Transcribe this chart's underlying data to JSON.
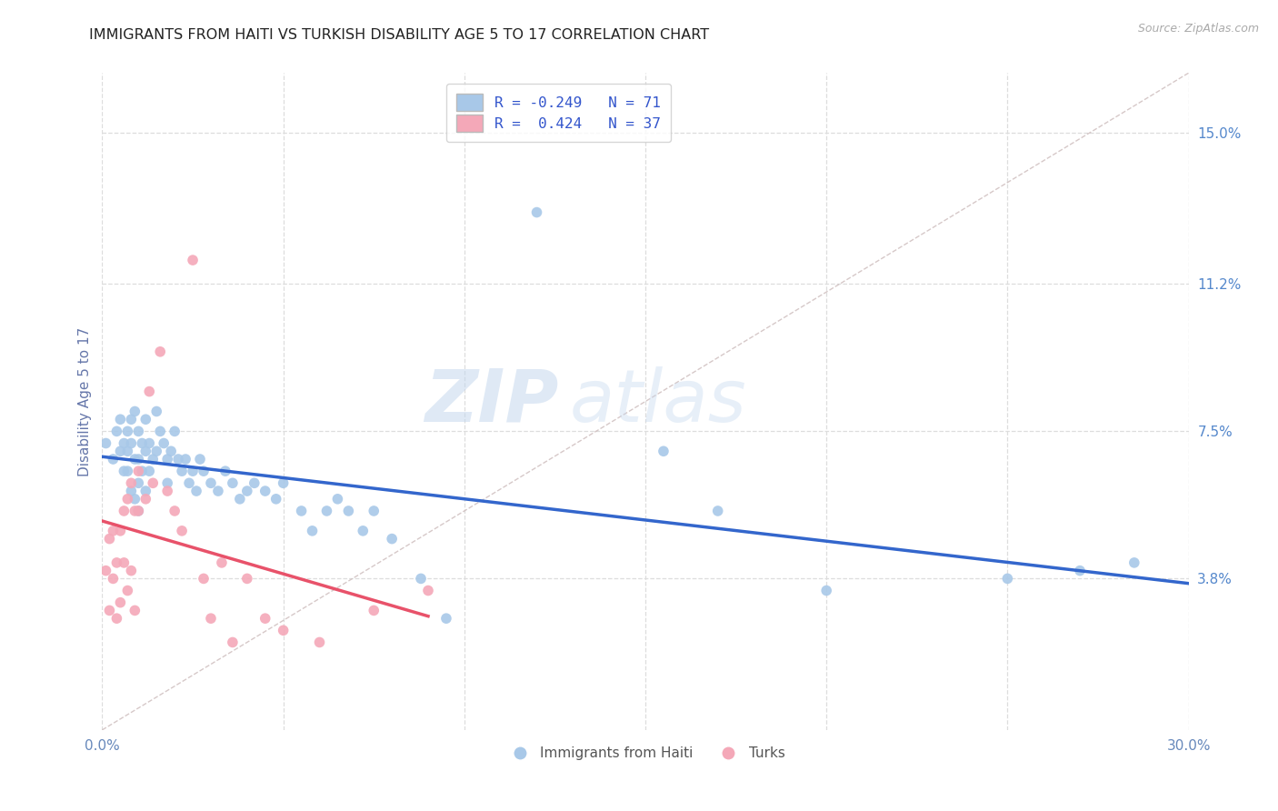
{
  "title": "IMMIGRANTS FROM HAITI VS TURKISH DISABILITY AGE 5 TO 17 CORRELATION CHART",
  "source": "Source: ZipAtlas.com",
  "ylabel": "Disability Age 5 to 17",
  "xlim": [
    0.0,
    0.3
  ],
  "ylim": [
    0.0,
    0.165
  ],
  "xticks": [
    0.0,
    0.05,
    0.1,
    0.15,
    0.2,
    0.25,
    0.3
  ],
  "xticklabels": [
    "0.0%",
    "",
    "",
    "",
    "",
    "",
    "30.0%"
  ],
  "ytick_positions": [
    0.038,
    0.075,
    0.112,
    0.15
  ],
  "ytick_labels": [
    "3.8%",
    "7.5%",
    "11.2%",
    "15.0%"
  ],
  "legend_blue_r": "-0.249",
  "legend_blue_n": "71",
  "legend_pink_r": "0.424",
  "legend_pink_n": "37",
  "legend_label_blue": "Immigrants from Haiti",
  "legend_label_pink": "Turks",
  "color_blue": "#a8c8e8",
  "color_pink": "#f4a8b8",
  "color_line_blue": "#3366cc",
  "color_line_pink": "#e8526a",
  "color_diag": "#ccbbbb",
  "background": "#ffffff",
  "grid_color": "#dddddd",
  "title_color": "#222222",
  "watermark_zip": "ZIP",
  "watermark_atlas": "atlas",
  "blue_x": [
    0.001,
    0.003,
    0.004,
    0.005,
    0.005,
    0.006,
    0.006,
    0.007,
    0.007,
    0.007,
    0.008,
    0.008,
    0.008,
    0.009,
    0.009,
    0.009,
    0.01,
    0.01,
    0.01,
    0.01,
    0.011,
    0.011,
    0.012,
    0.012,
    0.012,
    0.013,
    0.013,
    0.014,
    0.015,
    0.015,
    0.016,
    0.017,
    0.018,
    0.018,
    0.019,
    0.02,
    0.021,
    0.022,
    0.023,
    0.024,
    0.025,
    0.026,
    0.027,
    0.028,
    0.03,
    0.032,
    0.034,
    0.036,
    0.038,
    0.04,
    0.042,
    0.045,
    0.048,
    0.05,
    0.055,
    0.058,
    0.062,
    0.065,
    0.068,
    0.072,
    0.075,
    0.08,
    0.088,
    0.095,
    0.12,
    0.155,
    0.17,
    0.2,
    0.25,
    0.27,
    0.285
  ],
  "blue_y": [
    0.072,
    0.068,
    0.075,
    0.078,
    0.07,
    0.072,
    0.065,
    0.075,
    0.07,
    0.065,
    0.078,
    0.072,
    0.06,
    0.08,
    0.068,
    0.058,
    0.075,
    0.068,
    0.062,
    0.055,
    0.072,
    0.065,
    0.078,
    0.07,
    0.06,
    0.072,
    0.065,
    0.068,
    0.08,
    0.07,
    0.075,
    0.072,
    0.068,
    0.062,
    0.07,
    0.075,
    0.068,
    0.065,
    0.068,
    0.062,
    0.065,
    0.06,
    0.068,
    0.065,
    0.062,
    0.06,
    0.065,
    0.062,
    0.058,
    0.06,
    0.062,
    0.06,
    0.058,
    0.062,
    0.055,
    0.05,
    0.055,
    0.058,
    0.055,
    0.05,
    0.055,
    0.048,
    0.038,
    0.028,
    0.13,
    0.07,
    0.055,
    0.035,
    0.038,
    0.04,
    0.042
  ],
  "pink_x": [
    0.001,
    0.002,
    0.002,
    0.003,
    0.003,
    0.004,
    0.004,
    0.005,
    0.005,
    0.006,
    0.006,
    0.007,
    0.007,
    0.008,
    0.008,
    0.009,
    0.009,
    0.01,
    0.01,
    0.012,
    0.013,
    0.014,
    0.016,
    0.018,
    0.02,
    0.022,
    0.025,
    0.028,
    0.03,
    0.033,
    0.036,
    0.04,
    0.045,
    0.05,
    0.06,
    0.075,
    0.09
  ],
  "pink_y": [
    0.04,
    0.048,
    0.03,
    0.05,
    0.038,
    0.042,
    0.028,
    0.05,
    0.032,
    0.055,
    0.042,
    0.058,
    0.035,
    0.062,
    0.04,
    0.055,
    0.03,
    0.065,
    0.055,
    0.058,
    0.085,
    0.062,
    0.095,
    0.06,
    0.055,
    0.05,
    0.118,
    0.038,
    0.028,
    0.042,
    0.022,
    0.038,
    0.028,
    0.025,
    0.022,
    0.03,
    0.035
  ]
}
